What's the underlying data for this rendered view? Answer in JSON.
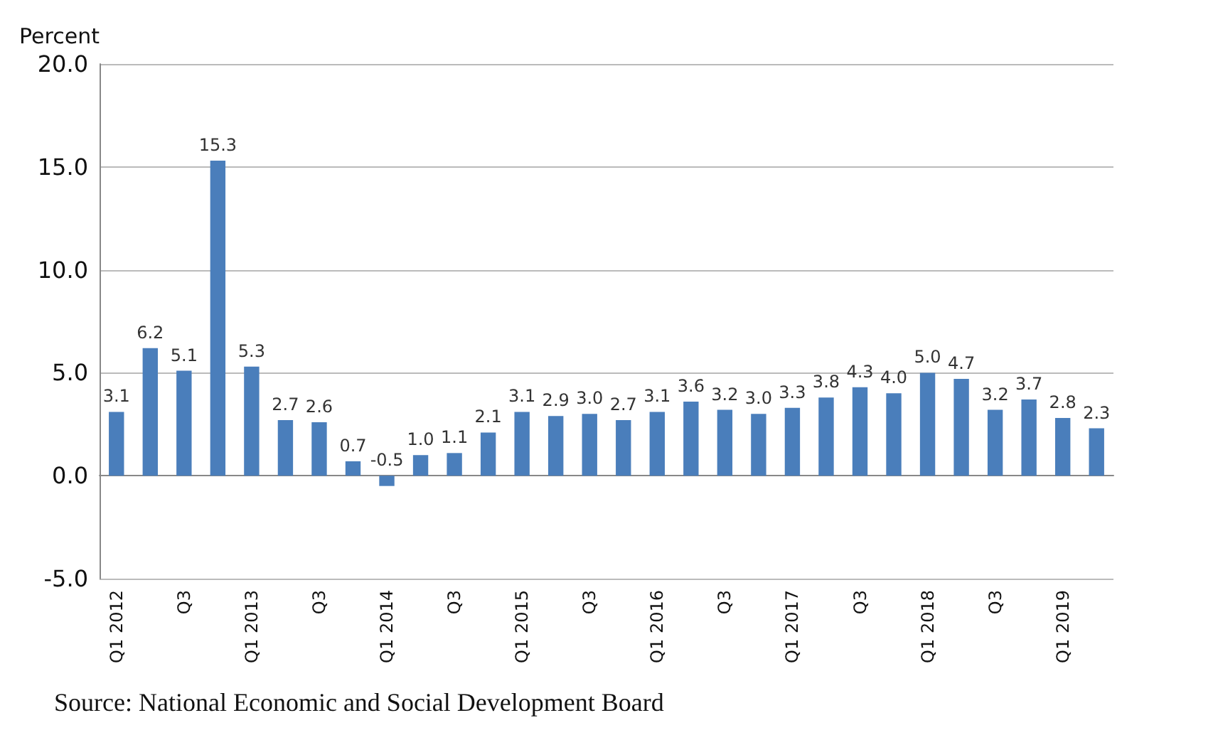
{
  "chart_data": {
    "type": "bar",
    "ylabel": "Percent",
    "annotations": [
      "Source: National Economic and Social Development Board"
    ],
    "categories": [
      "Q1 2012",
      null,
      "Q3",
      null,
      "Q1 2013",
      null,
      "Q3",
      null,
      "Q1 2014",
      null,
      "Q3",
      null,
      "Q1 2015",
      null,
      "Q3",
      null,
      "Q1 2016",
      null,
      "Q3",
      null,
      "Q1 2017",
      null,
      "Q3",
      null,
      "Q1 2018",
      null,
      "Q3",
      null,
      "Q1 2019",
      null
    ],
    "values": [
      3.1,
      6.2,
      5.1,
      15.3,
      5.3,
      2.7,
      2.6,
      0.7,
      -0.5,
      1.0,
      1.1,
      2.1,
      3.1,
      2.9,
      3.0,
      2.7,
      3.1,
      3.6,
      3.2,
      3.0,
      3.3,
      3.8,
      4.3,
      4.0,
      5.0,
      4.7,
      3.2,
      3.7,
      2.8,
      2.3
    ],
    "value_labels": [
      "3.1",
      "6.2",
      "5.1",
      "15.3",
      "5.3",
      "2.7",
      "2.6",
      "0.7",
      "-0.5",
      "1.0",
      "1.1",
      "2.1",
      "3.1",
      "2.9",
      "3.0",
      "2.7",
      "3.1",
      "3.6",
      "3.2",
      "3.0",
      "3.3",
      "3.8",
      "4.3",
      "4.0",
      "5.0",
      "4.7",
      "3.2",
      "3.7",
      "2.8",
      "2.3"
    ],
    "color": "#4a7ebb",
    "ylim": [
      -5,
      20
    ],
    "yticks": [
      {
        "value": -5,
        "label": "-5.0"
      },
      {
        "value": 0,
        "label": "0.0"
      },
      {
        "value": 5,
        "label": "5.0"
      },
      {
        "value": 10,
        "label": "10.0"
      },
      {
        "value": 15,
        "label": "15.0"
      },
      {
        "value": 20,
        "label": "20.0"
      }
    ],
    "grid": "y"
  }
}
